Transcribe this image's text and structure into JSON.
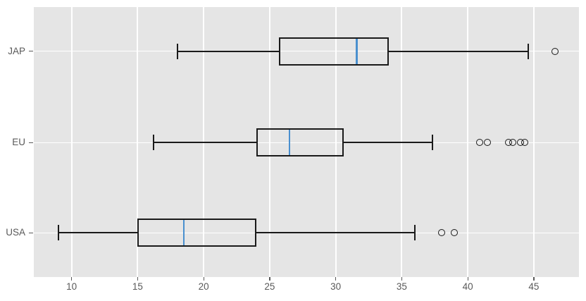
{
  "figure": {
    "background": "#ffffff",
    "plot_background": "#e5e5e5",
    "grid_color": "#ffffff",
    "box_line_color": "#1a1a1a",
    "median_color": "#4a90cf",
    "tick_color": "#595959"
  },
  "chart_data": {
    "type": "boxplot",
    "orientation": "horizontal",
    "title": "",
    "xlabel": "",
    "ylabel": "",
    "grid": true,
    "xlim": [
      7.1,
      48.4
    ],
    "x_ticks": [
      10,
      15,
      20,
      25,
      30,
      35,
      40,
      45
    ],
    "categories": [
      "JAP",
      "EU",
      "USA"
    ],
    "groups": [
      {
        "label": "JAP",
        "whisker_low": 18.0,
        "q1": 25.7,
        "median": 31.6,
        "q3": 34.0,
        "whisker_high": 44.6,
        "outliers": [
          46.6
        ]
      },
      {
        "label": "EU",
        "whisker_low": 16.2,
        "q1": 24.0,
        "median": 26.5,
        "q3": 30.6,
        "whisker_high": 37.3,
        "outliers": [
          40.9,
          41.5,
          43.1,
          43.4,
          44.0,
          44.3
        ]
      },
      {
        "label": "USA",
        "whisker_low": 9.0,
        "q1": 15.0,
        "median": 18.5,
        "q3": 24.0,
        "whisker_high": 36.0,
        "outliers": [
          38.0,
          39.0
        ]
      }
    ]
  }
}
